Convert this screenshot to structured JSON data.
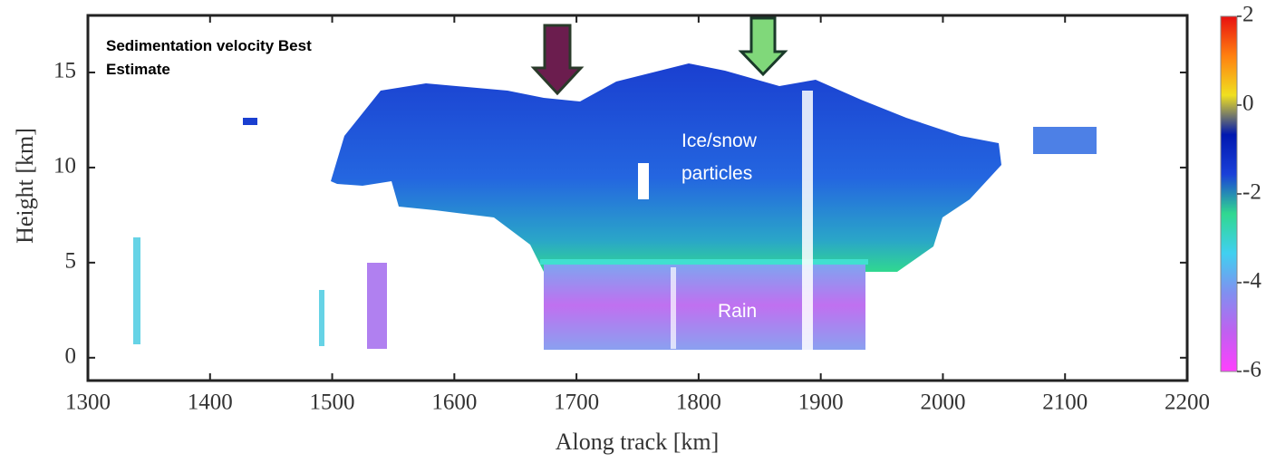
{
  "chart_data": {
    "type": "heatmap",
    "title": "Sedimentation velocity Best Estimate",
    "xlabel": "Along track [km]",
    "ylabel": "Height [km]",
    "xlim": [
      1300,
      2200
    ],
    "xticks": [
      1300,
      1400,
      1500,
      1600,
      1700,
      1800,
      1900,
      2000,
      2100,
      2200
    ],
    "ylim": [
      -1.2,
      18
    ],
    "yticks": [
      0,
      5,
      10,
      15
    ],
    "colorbar": {
      "lim": [
        -6,
        2
      ],
      "ticks": [
        -6,
        -4,
        -2,
        0,
        2
      ],
      "colors": [
        "#ff40ff",
        "#c060f0",
        "#8090f0",
        "#40d0f0",
        "#30d890",
        "#1a40d8",
        "#0018b0",
        "#f0e020",
        "#ff8010",
        "#e81010"
      ]
    },
    "annotations": [
      "Ice/snow particles",
      "Rain"
    ]
  }
}
